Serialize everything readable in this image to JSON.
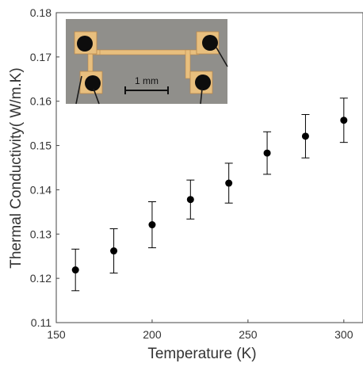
{
  "chart_data": {
    "type": "scatter",
    "xlabel": "Temperature (K)",
    "ylabel": "Thermal Conductivity( W/m.K)",
    "xlim": [
      150,
      310
    ],
    "ylim": [
      0.11,
      0.18
    ],
    "x_ticks": [
      150,
      200,
      250,
      300
    ],
    "x_tick_labels": [
      "150",
      "200",
      "250",
      "300"
    ],
    "y_ticks": [
      0.11,
      0.12,
      0.13,
      0.14,
      0.15,
      0.16,
      0.17,
      0.18
    ],
    "y_tick_labels": [
      "0.11",
      "0.12",
      "0.13",
      "0.14",
      "0.15",
      "0.16",
      "0.17",
      "0.18"
    ],
    "grid": false,
    "legend": "none",
    "series": [
      {
        "x": [
          160,
          180,
          200,
          220,
          240,
          260,
          280,
          300
        ],
        "y": [
          0.1219,
          0.1262,
          0.1321,
          0.1378,
          0.1415,
          0.1483,
          0.1521,
          0.1557
        ],
        "error": [
          0.0047,
          0.005,
          0.0052,
          0.0044,
          0.0045,
          0.0048,
          0.0049,
          0.005
        ]
      }
    ],
    "inset": {
      "type": "image",
      "description_visible": "micrograph of suspended sample with four contact pads",
      "scale_bar_label": "1 mm"
    }
  },
  "colors": {
    "marker": "#000000",
    "axis": "#333333",
    "inset_bg": "#8d8c88",
    "pad_gold": "#e8bf7e",
    "pad_dot": "#0d0d0d"
  }
}
